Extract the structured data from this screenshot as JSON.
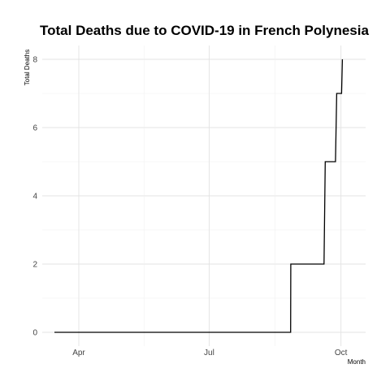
{
  "chart_data": {
    "type": "line",
    "title": "Total Deaths due to COVID-19 in French Polynesia",
    "xlabel": "Month",
    "ylabel": "Total Deaths",
    "x_ticks": [
      {
        "label": "Apr",
        "date": "2020-04-01"
      },
      {
        "label": "Jul",
        "date": "2020-07-01"
      },
      {
        "label": "Oct",
        "date": "2020-10-01"
      }
    ],
    "y_ticks": [
      0,
      2,
      4,
      6,
      8
    ],
    "xlim": [
      "2020-03-15",
      "2020-10-08"
    ],
    "ylim": [
      0,
      8
    ],
    "line_color": "#000000",
    "grid": true,
    "series": [
      {
        "x": [
          "2020-03-15",
          "2020-08-26",
          "2020-08-27",
          "2020-09-13",
          "2020-09-20",
          "2020-09-28",
          "2020-10-02"
        ],
        "values": [
          0,
          0,
          2,
          2,
          5,
          7,
          8
        ]
      }
    ]
  }
}
